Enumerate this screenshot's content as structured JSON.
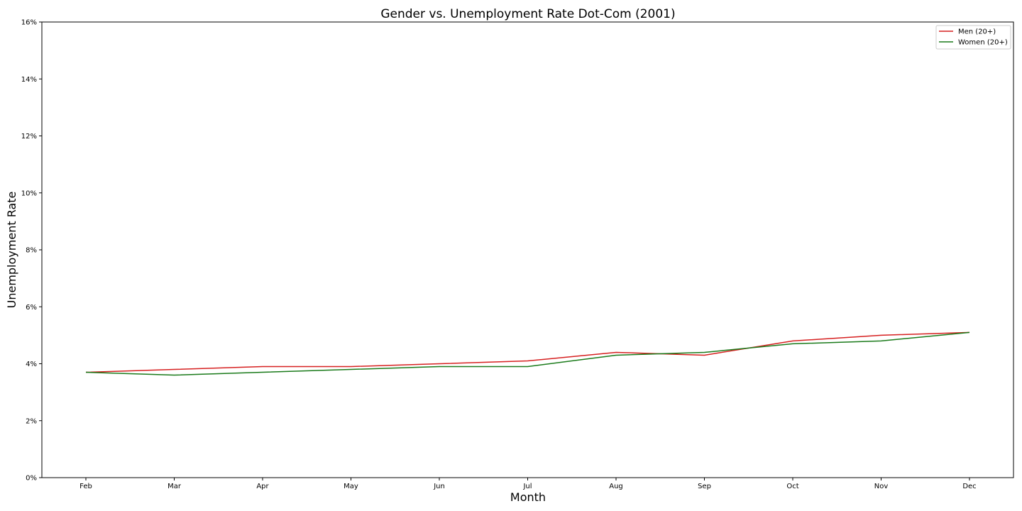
{
  "chart_data": {
    "type": "line",
    "title": "Gender vs. Unemployment Rate Dot-Com (2001)",
    "xlabel": "Month",
    "ylabel": "Unemployment Rate",
    "categories": [
      "Feb",
      "Mar",
      "Apr",
      "May",
      "Jun",
      "Jul",
      "Aug",
      "Sep",
      "Oct",
      "Nov",
      "Dec"
    ],
    "y_ticks": [
      "0%",
      "2%",
      "4%",
      "6%",
      "8%",
      "10%",
      "12%",
      "14%",
      "16%"
    ],
    "ylim": [
      0,
      16
    ],
    "grid": false,
    "legend_position": "top-right",
    "series": [
      {
        "name": "Men (20+)",
        "color": "#d62020",
        "values": [
          3.7,
          3.8,
          3.9,
          3.9,
          4.0,
          4.1,
          4.4,
          4.3,
          4.8,
          5.0,
          5.1
        ]
      },
      {
        "name": "Women (20+)",
        "color": "#1a7a1a",
        "values": [
          3.7,
          3.6,
          3.7,
          3.8,
          3.9,
          3.9,
          4.3,
          4.4,
          4.7,
          4.8,
          5.1
        ]
      }
    ]
  }
}
